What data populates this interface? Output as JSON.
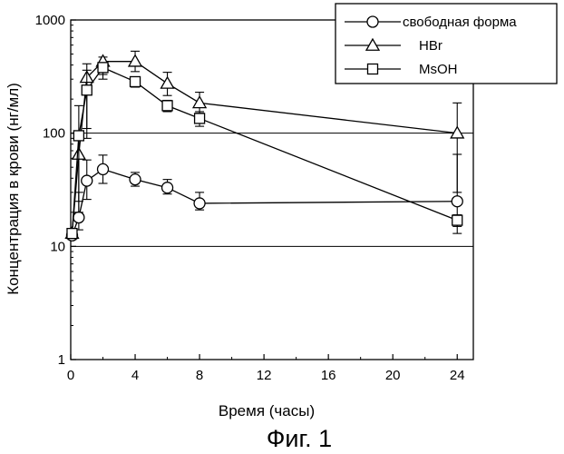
{
  "chart_data": {
    "type": "line",
    "xlabel": "Время (часы)",
    "ylabel": "Концентрация в крови (нг/мл)",
    "caption": "Фиг. 1",
    "x_ticks": [
      "0",
      "4",
      "8",
      "12",
      "16",
      "20",
      "24"
    ],
    "y_ticks": [
      "1",
      "10",
      "100",
      "1000"
    ],
    "xlim": [
      0,
      25
    ],
    "ylim": [
      1,
      1000
    ],
    "y_scale": "log",
    "grid": "horizontal at 10 and 100",
    "legend_position": "top-right",
    "series": [
      {
        "name": "свободная форма",
        "marker": "circle",
        "x": [
          0.083,
          0.5,
          1,
          2,
          4,
          6,
          8,
          24
        ],
        "y": [
          12.5,
          18,
          38,
          48,
          39,
          33,
          24,
          25
        ],
        "err_low": [
          1,
          4,
          12,
          12,
          5,
          4,
          3,
          12
        ],
        "err_high": [
          1,
          12,
          20,
          16,
          6,
          6,
          6,
          40
        ]
      },
      {
        "name": "HBr",
        "marker": "triangle",
        "x": [
          0.083,
          0.5,
          1,
          2,
          4,
          6,
          8,
          24
        ],
        "y": [
          13,
          65,
          310,
          430,
          430,
          275,
          185,
          100
        ],
        "err_low": [
          1,
          45,
          200,
          100,
          80,
          60,
          35,
          70
        ],
        "err_high": [
          1,
          40,
          100,
          40,
          100,
          70,
          45,
          85
        ]
      },
      {
        "name": "MsOH",
        "marker": "square",
        "x": [
          0.083,
          0.5,
          1,
          2,
          4,
          6,
          8,
          24
        ],
        "y": [
          13,
          95,
          240,
          380,
          285,
          175,
          135,
          17
        ],
        "err_low": [
          1,
          70,
          150,
          80,
          30,
          20,
          20,
          2
        ],
        "err_high": [
          1,
          80,
          120,
          40,
          30,
          20,
          20,
          2
        ]
      }
    ],
    "colors": {
      "line": "#000000",
      "marker_fill": "#ffffff",
      "background": "#ffffff"
    }
  }
}
